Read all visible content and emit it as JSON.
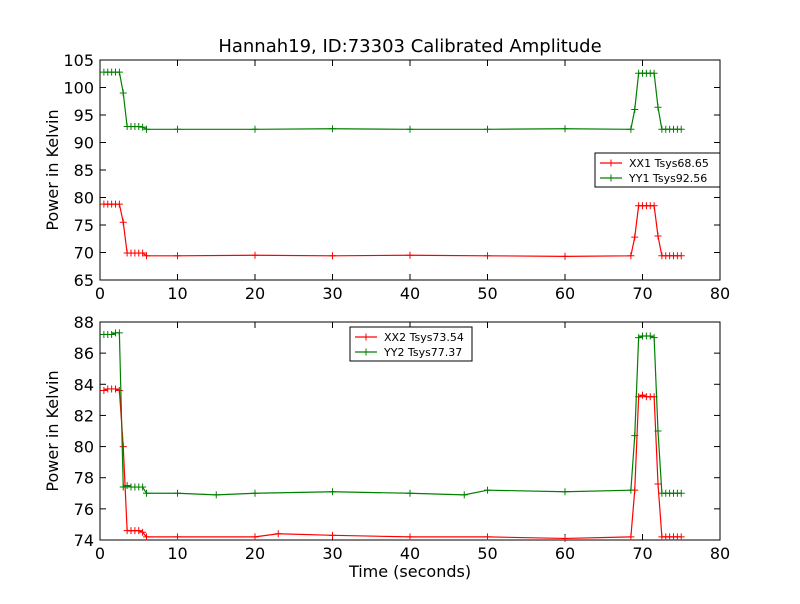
{
  "chart_data": [
    {
      "type": "line",
      "title": "Hannah19, ID:73303 Calibrated Amplitude",
      "xlabel": "",
      "ylabel": "Power in Kelvin",
      "xlim": [
        0,
        80
      ],
      "ylim": [
        65,
        105
      ],
      "xticks": [
        0,
        10,
        20,
        30,
        40,
        50,
        60,
        70,
        80
      ],
      "yticks": [
        65,
        70,
        75,
        80,
        85,
        90,
        95,
        100,
        105
      ],
      "legend_position": "center-right",
      "grid": false,
      "series": [
        {
          "name": "XX1 Tsys68.65",
          "color": "#ff0000",
          "marker": "plus",
          "x": [
            0.5,
            1.0,
            1.5,
            2.0,
            2.5,
            3.0,
            3.5,
            4.0,
            4.5,
            5.0,
            5.5,
            6.0,
            10.0,
            20.0,
            30.0,
            40.0,
            50.0,
            60.0,
            68.5,
            69.0,
            69.5,
            70.0,
            70.5,
            71.0,
            71.5,
            72.0,
            72.5,
            73.0,
            73.5,
            74.0,
            74.5,
            75.0
          ],
          "y": [
            78.8,
            78.8,
            78.8,
            78.8,
            78.8,
            75.5,
            69.9,
            69.9,
            69.9,
            69.9,
            69.9,
            69.4,
            69.4,
            69.5,
            69.4,
            69.5,
            69.4,
            69.3,
            69.4,
            72.8,
            78.5,
            78.5,
            78.5,
            78.5,
            78.5,
            73.0,
            69.4,
            69.4,
            69.4,
            69.4,
            69.4,
            69.4
          ]
        },
        {
          "name": "YY1 Tsys92.56",
          "color": "#008000",
          "marker": "plus",
          "x": [
            0.5,
            1.0,
            1.5,
            2.0,
            2.5,
            3.0,
            3.5,
            4.0,
            4.5,
            5.0,
            5.5,
            6.0,
            10.0,
            20.0,
            30.0,
            40.0,
            50.0,
            60.0,
            68.5,
            69.0,
            69.5,
            70.0,
            70.5,
            71.0,
            71.5,
            72.0,
            72.5,
            73.0,
            73.5,
            74.0,
            74.5,
            75.0
          ],
          "y": [
            102.8,
            102.8,
            102.8,
            102.8,
            102.8,
            99.0,
            92.9,
            92.9,
            92.9,
            92.9,
            92.8,
            92.4,
            92.4,
            92.4,
            92.5,
            92.4,
            92.4,
            92.5,
            92.4,
            96.0,
            102.6,
            102.6,
            102.6,
            102.6,
            102.6,
            96.4,
            92.4,
            92.4,
            92.4,
            92.4,
            92.4,
            92.4
          ]
        }
      ]
    },
    {
      "type": "line",
      "title": "",
      "xlabel": "Time (seconds)",
      "ylabel": "Power in Kelvin",
      "xlim": [
        0,
        80
      ],
      "ylim": [
        74,
        88
      ],
      "xticks": [
        0,
        10,
        20,
        30,
        40,
        50,
        60,
        70,
        80
      ],
      "yticks": [
        74,
        76,
        78,
        80,
        82,
        84,
        86,
        88
      ],
      "legend_position": "upper-center",
      "grid": false,
      "series": [
        {
          "name": "XX2 Tsys73.54",
          "color": "#ff0000",
          "marker": "plus",
          "x": [
            0.5,
            1.0,
            1.5,
            2.0,
            2.5,
            3.0,
            3.5,
            4.0,
            4.5,
            5.0,
            5.5,
            6.0,
            10.0,
            20.0,
            23.0,
            30.0,
            40.0,
            50.0,
            60.0,
            68.5,
            69.0,
            69.5,
            70.0,
            70.5,
            71.0,
            71.5,
            72.0,
            72.5,
            73.0,
            73.5,
            74.0,
            74.5,
            75.0
          ],
          "y": [
            83.6,
            83.7,
            83.7,
            83.7,
            83.6,
            80.0,
            74.6,
            74.6,
            74.6,
            74.6,
            74.5,
            74.2,
            74.2,
            74.2,
            74.4,
            74.3,
            74.2,
            74.2,
            74.1,
            74.2,
            77.2,
            83.2,
            83.3,
            83.2,
            83.2,
            83.2,
            77.6,
            74.2,
            74.2,
            74.2,
            74.2,
            74.2,
            74.2
          ]
        },
        {
          "name": "YY2 Tsys77.37",
          "color": "#008000",
          "marker": "plus",
          "x": [
            0.5,
            1.0,
            1.5,
            2.0,
            2.5,
            3.0,
            3.5,
            4.0,
            4.5,
            5.0,
            5.5,
            6.0,
            10.0,
            15.0,
            20.0,
            30.0,
            40.0,
            47.0,
            50.0,
            60.0,
            68.5,
            69.0,
            69.5,
            70.0,
            70.5,
            71.0,
            71.5,
            72.0,
            72.5,
            73.0,
            73.5,
            74.0,
            74.5,
            75.0
          ],
          "y": [
            87.2,
            87.2,
            87.2,
            87.3,
            87.3,
            77.4,
            77.5,
            77.4,
            77.4,
            77.4,
            77.4,
            77.0,
            77.0,
            76.9,
            77.0,
            77.1,
            77.0,
            76.9,
            77.2,
            77.1,
            77.2,
            80.7,
            87.0,
            87.1,
            87.1,
            87.1,
            87.0,
            81.0,
            77.0,
            77.0,
            77.0,
            77.0,
            77.0,
            77.0
          ]
        }
      ]
    }
  ]
}
